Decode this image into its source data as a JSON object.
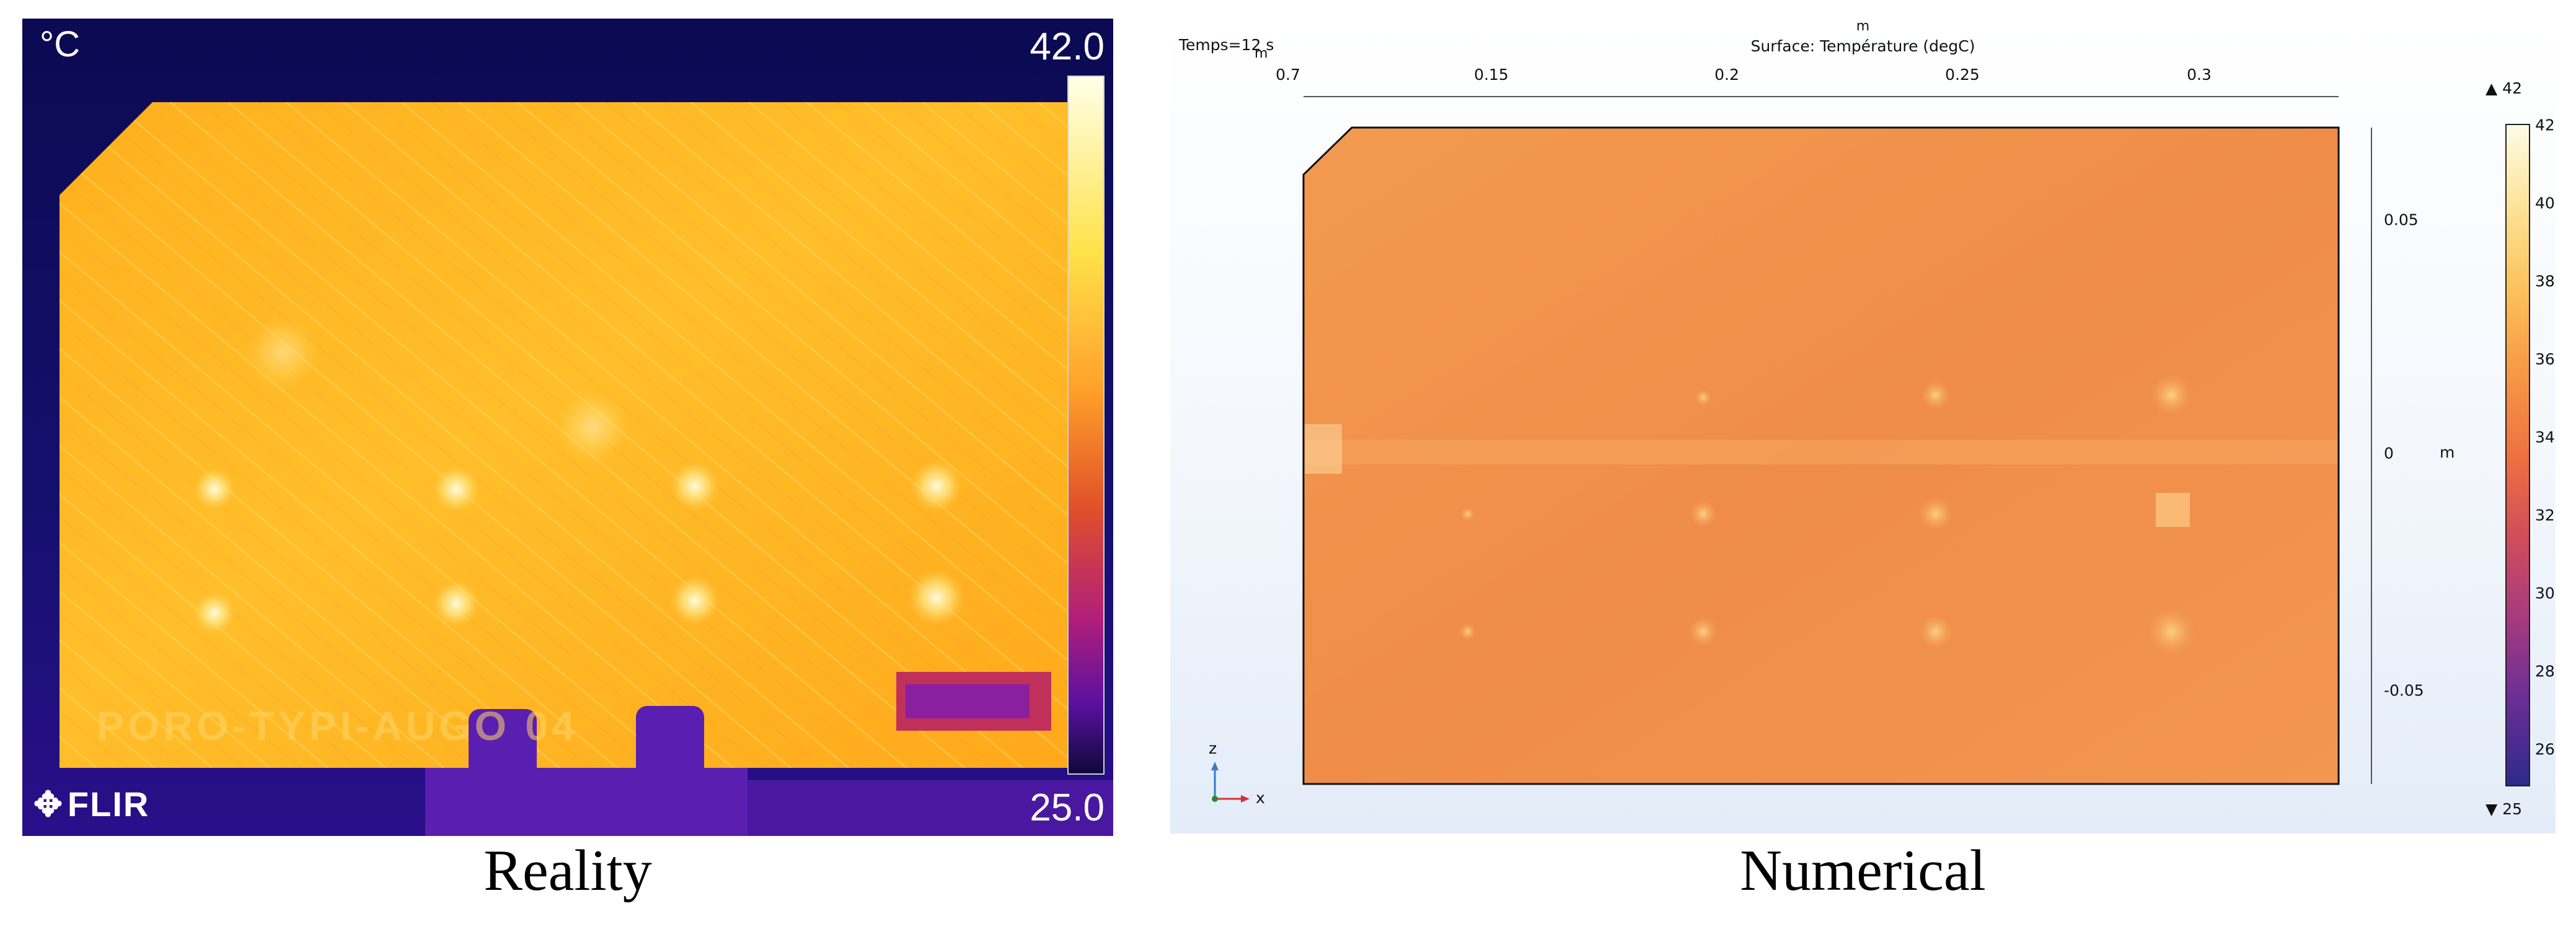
{
  "left_panel": {
    "unit": "°C",
    "scale_max": "42.0",
    "scale_min": "25.0",
    "logo": "FLIR",
    "plate_text": "PORO-TYPI-AUGO 04",
    "caption": "Reality"
  },
  "right_panel": {
    "time_label": "Temps=12 s",
    "time_unit": "m",
    "title": "Surface: Température (degC)",
    "axis_unit_top": "m",
    "axis_unit_right": "m",
    "x_ticks": [
      "0.7",
      "0.15",
      "0.2",
      "0.25",
      "0.3"
    ],
    "y_ticks": [
      "0.05",
      "0",
      "-0.05"
    ],
    "colorbar_ticks": [
      "42",
      "40",
      "38",
      "36",
      "34",
      "32",
      "30",
      "28",
      "26"
    ],
    "colorbar_max": "▲ 42",
    "colorbar_min": "▼ 25",
    "axis_triad": {
      "z": "z",
      "x": "x"
    },
    "caption": "Numerical"
  },
  "colors": {
    "flir_background": "#0e0a5e",
    "flir_plate": "#ffb224",
    "comsol_field": "#f0924a",
    "comsol_background": "#eef3fa"
  }
}
